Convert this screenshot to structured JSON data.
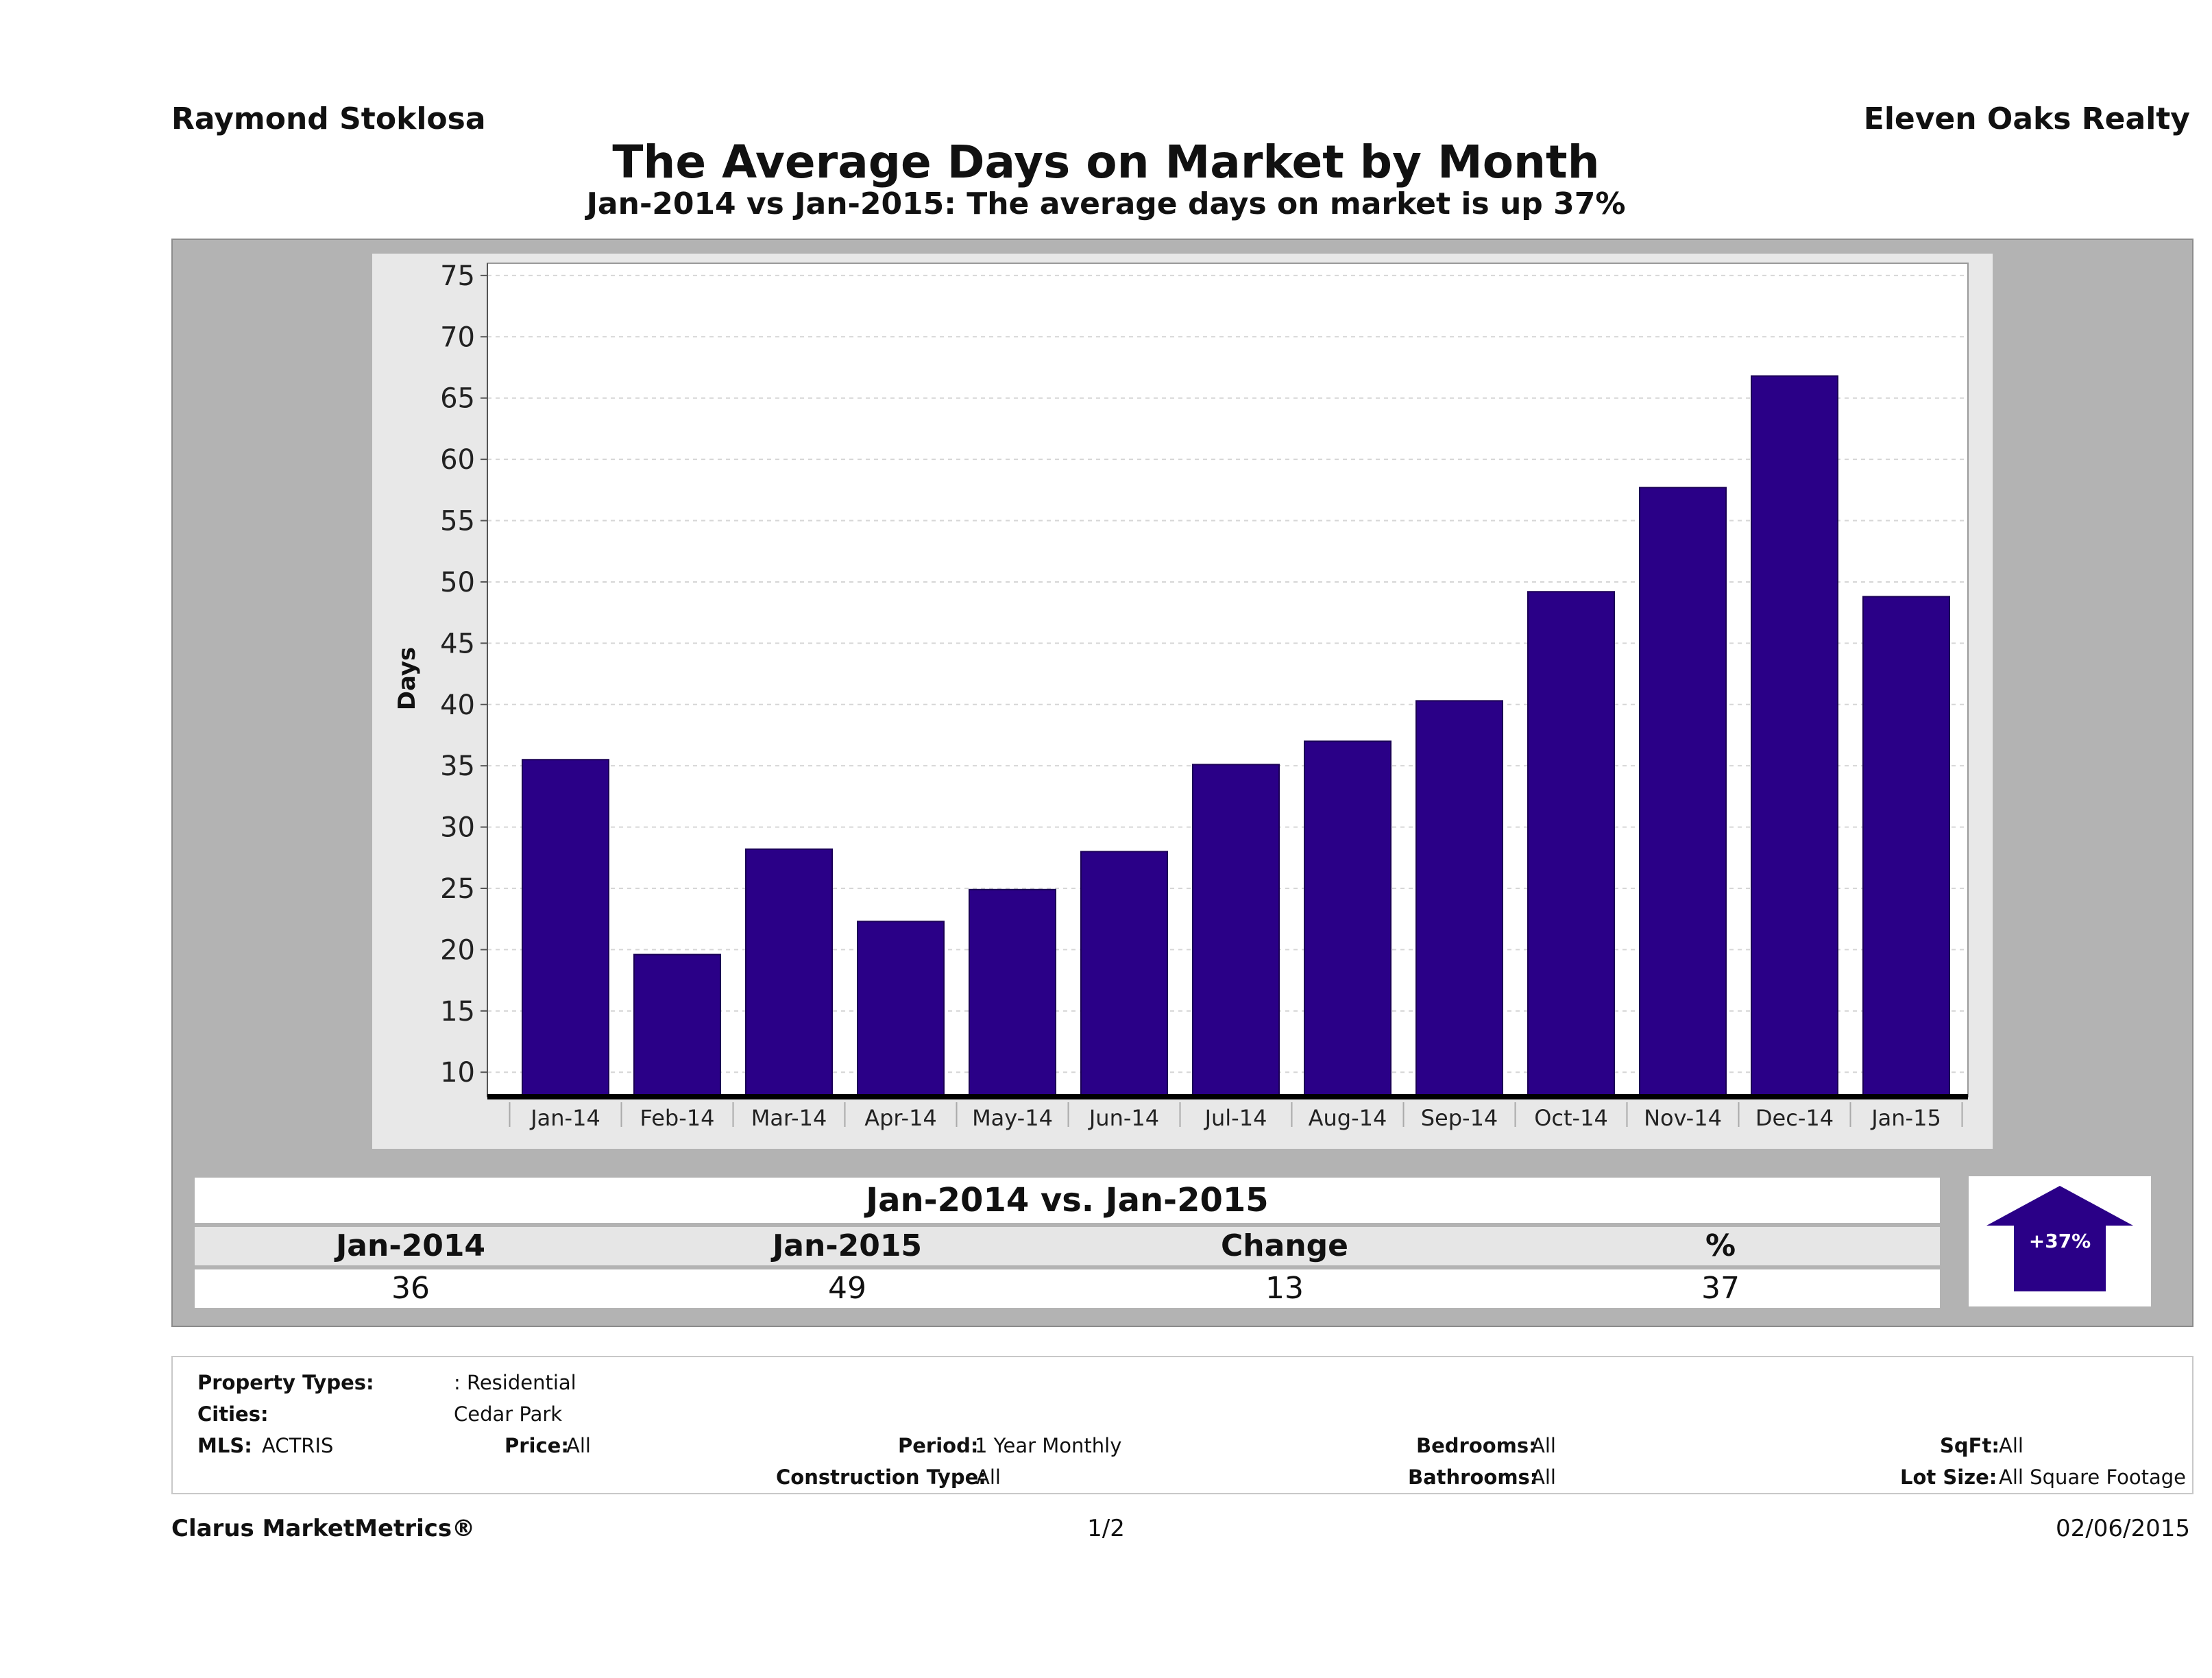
{
  "header": {
    "agent_name": "Raymond Stoklosa",
    "company": "Eleven Oaks Realty",
    "title": "The Average Days on Market by Month",
    "subtitle": "Jan-2014 vs Jan-2015: The average days on market is up 37%"
  },
  "chart_data": {
    "type": "bar",
    "title": "The Average Days on Market by Month",
    "subtitle": "Jan-2014 vs Jan-2015: The average days on market is up 37%",
    "xlabel": "",
    "ylabel": "Days",
    "categories": [
      "Jan-14",
      "Feb-14",
      "Mar-14",
      "Apr-14",
      "May-14",
      "Jun-14",
      "Jul-14",
      "Aug-14",
      "Sep-14",
      "Oct-14",
      "Nov-14",
      "Dec-14",
      "Jan-15"
    ],
    "values": [
      35.5,
      19.6,
      28.2,
      22.3,
      24.9,
      28.0,
      35.1,
      37.0,
      40.3,
      49.2,
      57.7,
      66.8,
      48.8
    ],
    "ylim": [
      8,
      76
    ],
    "yticks": [
      10,
      15,
      20,
      25,
      30,
      35,
      40,
      45,
      50,
      55,
      60,
      65,
      70,
      75
    ],
    "grid": true,
    "legend": "none",
    "bar_color": "#2a0087"
  },
  "summary": {
    "heading": "Jan-2014 vs. Jan-2015",
    "labels": [
      "Jan-2014",
      "Jan-2015",
      "Change",
      "%"
    ],
    "values": [
      "36",
      "49",
      "13",
      "37"
    ],
    "badge": "+37%",
    "badge_direction": "up",
    "badge_color": "#2a0087"
  },
  "criteria": {
    "property_types_label": "Property Types:",
    "property_types_value": ": Residential",
    "cities_label": "Cities:",
    "cities_value": "Cedar Park",
    "mls_label": "MLS:",
    "mls_value": "ACTRIS",
    "price_label": "Price:",
    "price_value": "All",
    "period_label": "Period:",
    "period_value": "1 Year Monthly",
    "construction_label": "Construction Type:",
    "construction_value": "All",
    "bedrooms_label": "Bedrooms:",
    "bedrooms_value": "All",
    "bathrooms_label": "Bathrooms:",
    "bathrooms_value": "All",
    "sqft_label": "SqFt:",
    "sqft_value": "All",
    "lot_label": "Lot Size:",
    "lot_value": "All Square Footage"
  },
  "footer": {
    "brand": "Clarus MarketMetrics®",
    "page": "1/2",
    "date": "02/06/2015"
  }
}
